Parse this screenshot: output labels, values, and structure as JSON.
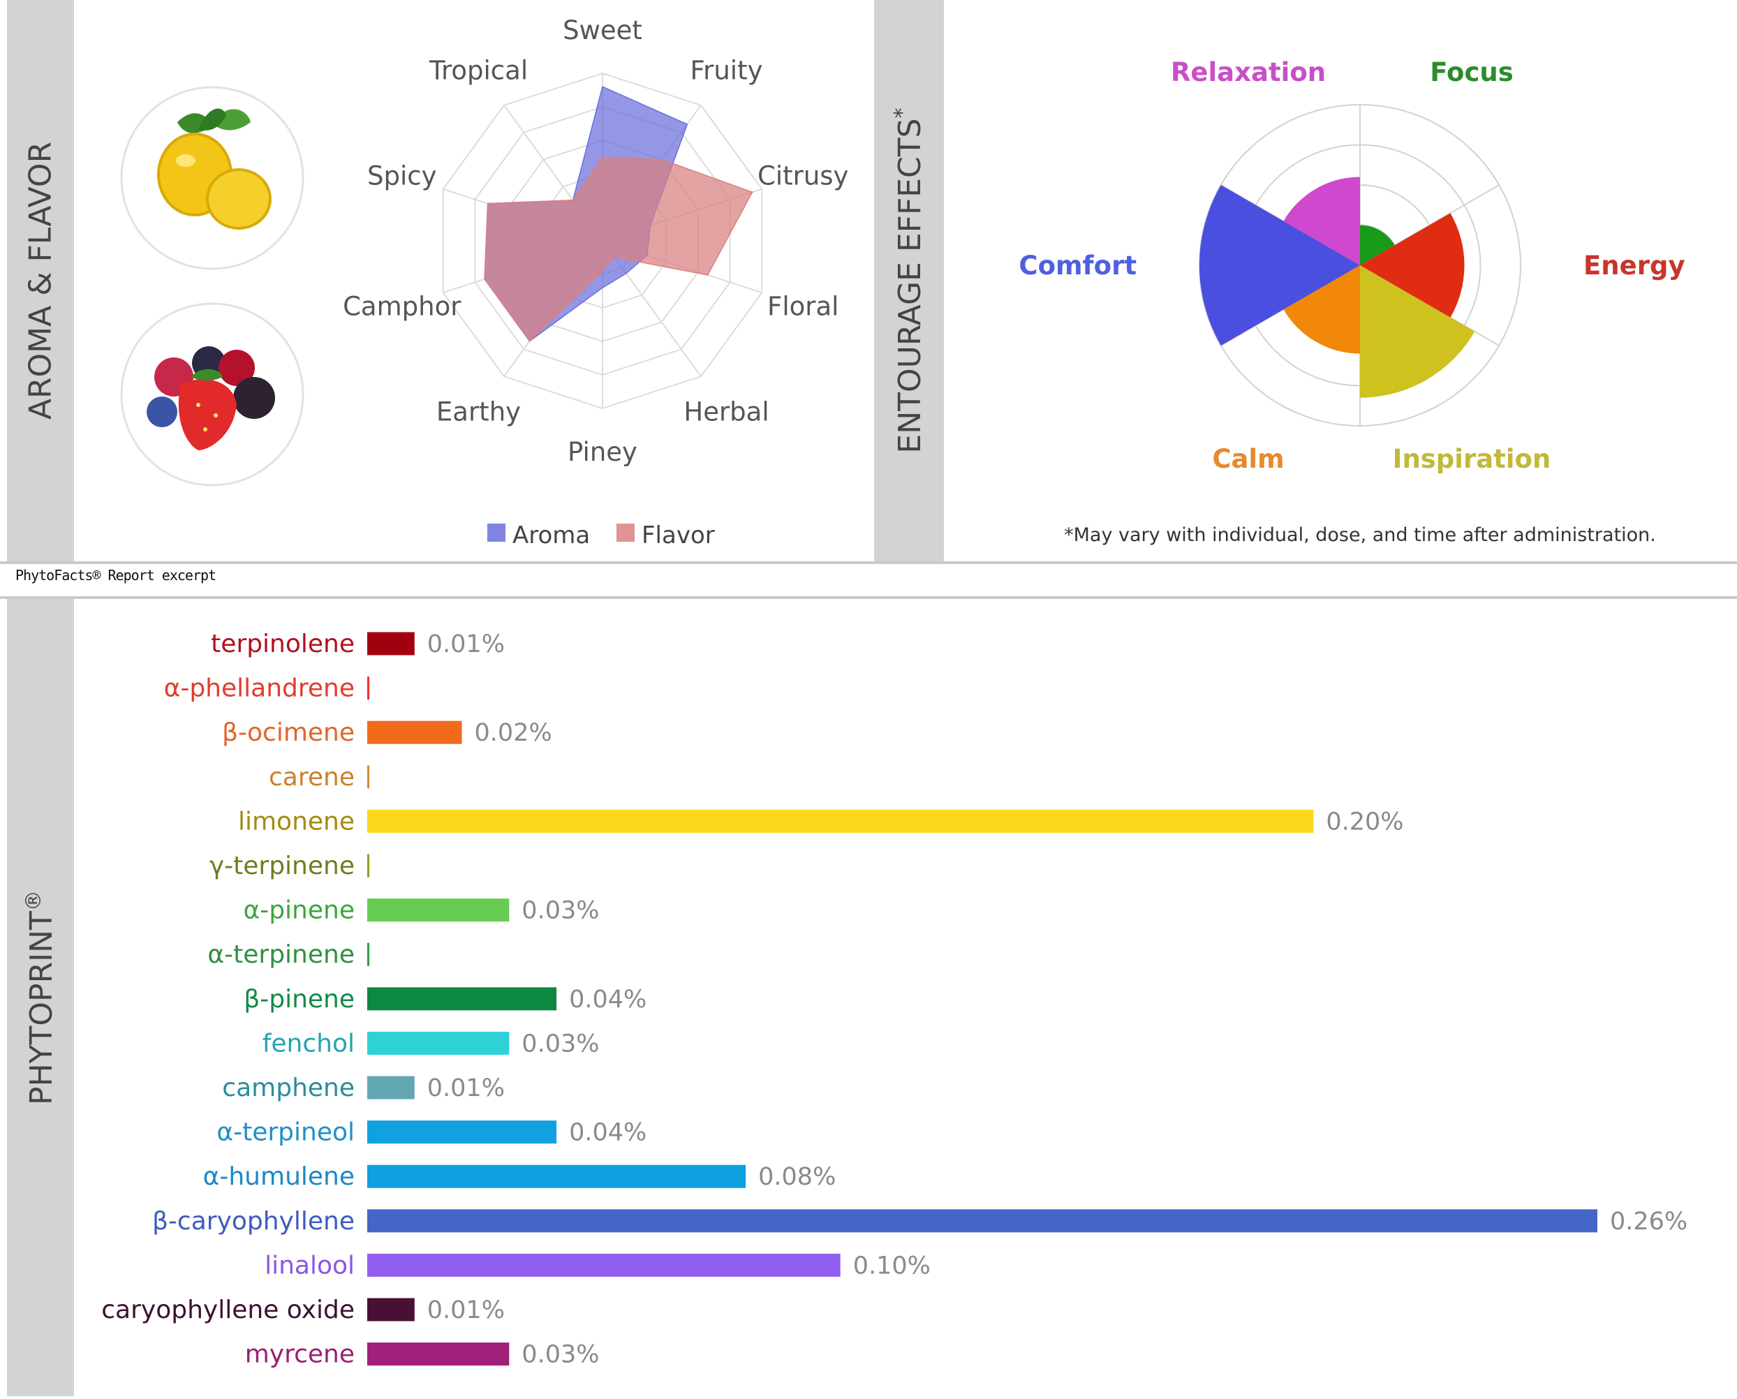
{
  "caption": "PhytoFacts® Report excerpt",
  "aroma_section": {
    "sidebar_label": "AROMA & FLAVOR",
    "icons": [
      "lemon-icon",
      "berries-icon"
    ]
  },
  "effects_section": {
    "sidebar_label": "ENTOURAGE EFFECTS",
    "sidebar_mark": "*",
    "footnote": "*May vary with individual, dose, and time after administration."
  },
  "phyto_section": {
    "sidebar_label": "PHYTOPRINT",
    "sidebar_mark": "®"
  },
  "chart_data": [
    {
      "type": "radar",
      "axes": [
        "Sweet",
        "Fruity",
        "Citrusy",
        "Floral",
        "Herbal",
        "Piney",
        "Earthy",
        "Camphor",
        "Spicy",
        "Tropical"
      ],
      "rmax": 5,
      "series": [
        {
          "name": "Aroma",
          "color": "#6a6fdc",
          "values": [
            4.6,
            4.3,
            1.5,
            1.4,
            1.2,
            1.4,
            3.7,
            3.7,
            3.6,
            1.5
          ]
        },
        {
          "name": "Flavor",
          "color": "#d98080",
          "values": [
            2.5,
            3.0,
            4.7,
            3.3,
            0.6,
            0.9,
            3.7,
            3.7,
            3.6,
            1.5
          ]
        }
      ],
      "legend_position": "bottom"
    },
    {
      "type": "polar-area",
      "rmax": 4,
      "categories": [
        "Focus",
        "Energy",
        "Inspiration",
        "Calm",
        "Comfort",
        "Relaxation"
      ],
      "values": [
        1.0,
        2.6,
        3.3,
        2.2,
        4.0,
        2.2
      ],
      "colors": [
        "#1a9a1a",
        "#e02c13",
        "#cfc11e",
        "#f2880a",
        "#4a4fe0",
        "#cf49cf"
      ],
      "label_colors": [
        "#2c8c2c",
        "#c8352b",
        "#c2b83a",
        "#e68a2e",
        "#4f5fe0",
        "#c94fc9"
      ]
    },
    {
      "type": "bar",
      "orientation": "horizontal",
      "xlim": [
        0,
        0.26
      ],
      "unit": "%",
      "categories": [
        "terpinolene",
        "α-phellandrene",
        "β-ocimene",
        "carene",
        "limonene",
        "γ-terpinene",
        "α-pinene",
        "α-terpinene",
        "β-pinene",
        "fenchol",
        "camphene",
        "α-terpineol",
        "α-humulene",
        "β-caryophyllene",
        "linalool",
        "caryophyllene oxide",
        "myrcene"
      ],
      "values": [
        0.01,
        0.0,
        0.02,
        0.0,
        0.2,
        0.0,
        0.03,
        0.0,
        0.04,
        0.03,
        0.01,
        0.04,
        0.08,
        0.26,
        0.1,
        0.01,
        0.03
      ],
      "bar_pixel_hint": null,
      "data_labels": [
        "0.01%",
        "",
        "0.02%",
        "",
        "0.20%",
        "",
        "0.03%",
        "",
        "0.04%",
        "0.03%",
        "0.01%",
        "0.04%",
        "0.08%",
        "0.26%",
        "0.10%",
        "0.01%",
        "0.03%"
      ],
      "colors": [
        "#a3000f",
        "#e8342c",
        "#f26a1c",
        "#d58a3a",
        "#fbd81d",
        "#8ba02a",
        "#67cd52",
        "#2f9a4a",
        "#0c8841",
        "#2ed1d6",
        "#62a7b3",
        "#11a1e0",
        "#0ea0e0",
        "#4565c8",
        "#915ff0",
        "#4a0f35",
        "#a0207a"
      ],
      "label_colors": [
        "#b0101e",
        "#e23b2e",
        "#e0652a",
        "#c9822a",
        "#a48a10",
        "#6e7d1c",
        "#3aa63a",
        "#2f8f3f",
        "#118a45",
        "#22a4b0",
        "#2a8c9c",
        "#1f8fc8",
        "#1c87c7",
        "#3e5bc0",
        "#8b55e8",
        "#3e1130",
        "#9a1f74"
      ]
    }
  ]
}
